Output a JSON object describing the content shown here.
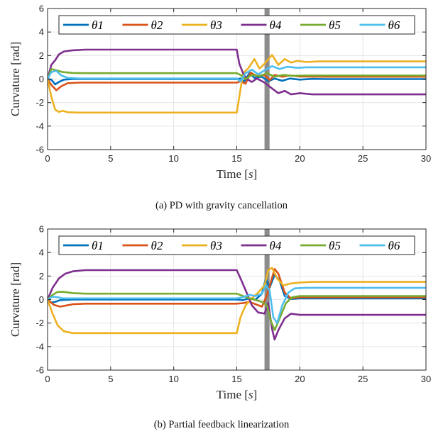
{
  "colors": {
    "theta1": "#0072BD",
    "theta2": "#D95319",
    "theta3": "#EDB120",
    "theta4": "#7E2F8E",
    "theta5": "#77AC30",
    "theta6": "#4DBEEE",
    "disturbance_band": "#8c8c8c",
    "grid": "#e6e6e6",
    "axes": "#262626"
  },
  "chart_data": [
    {
      "type": "line",
      "caption": "(a) PD with gravity cancellation",
      "xlabel": "Time",
      "xlabel_unit": "s",
      "ylabel": "Curvature [rad]",
      "xlim": [
        0,
        30
      ],
      "ylim": [
        -6,
        6
      ],
      "xticks": [
        0,
        5,
        10,
        15,
        20,
        25,
        30
      ],
      "yticks": [
        -6,
        -4,
        -2,
        0,
        2,
        4,
        6
      ],
      "grid": true,
      "legend_placement": "top, single row",
      "shaded_band_x": [
        17.2,
        17.6
      ],
      "series": [
        {
          "name": "θ1",
          "key": "theta1",
          "points": [
            [
              0,
              0
            ],
            [
              0.3,
              -0.05
            ],
            [
              0.6,
              -0.45
            ],
            [
              0.9,
              -0.25
            ],
            [
              1.3,
              -0.05
            ],
            [
              2,
              0
            ],
            [
              15,
              0
            ],
            [
              15.3,
              0.05
            ],
            [
              15.6,
              -0.2
            ],
            [
              16,
              0.5
            ],
            [
              16.4,
              0.1
            ],
            [
              17,
              0.2
            ],
            [
              17.5,
              -0.2
            ],
            [
              18,
              0.05
            ],
            [
              18.6,
              -0.15
            ],
            [
              19.2,
              0.05
            ],
            [
              20,
              -0.05
            ],
            [
              21,
              0.02
            ],
            [
              22,
              0
            ],
            [
              30,
              0
            ]
          ]
        },
        {
          "name": "θ2",
          "key": "theta2",
          "points": [
            [
              0,
              0
            ],
            [
              0.3,
              -0.5
            ],
            [
              0.7,
              -0.95
            ],
            [
              1.1,
              -0.6
            ],
            [
              1.6,
              -0.35
            ],
            [
              2.5,
              -0.3
            ],
            [
              15,
              -0.3
            ],
            [
              15.3,
              -0.2
            ],
            [
              15.7,
              -0.4
            ],
            [
              16.1,
              0.55
            ],
            [
              16.6,
              0.25
            ],
            [
              17.2,
              0.35
            ],
            [
              17.6,
              -0.1
            ],
            [
              18,
              0.35
            ],
            [
              18.6,
              0.2
            ],
            [
              19.2,
              0.3
            ],
            [
              20,
              0.22
            ],
            [
              22,
              0.2
            ],
            [
              30,
              0.2
            ]
          ]
        },
        {
          "name": "θ3",
          "key": "theta3",
          "points": [
            [
              0,
              0
            ],
            [
              0.3,
              -1.5
            ],
            [
              0.6,
              -2.6
            ],
            [
              0.9,
              -2.8
            ],
            [
              1.2,
              -2.7
            ],
            [
              1.6,
              -2.82
            ],
            [
              2.5,
              -2.85
            ],
            [
              15,
              -2.85
            ],
            [
              15.2,
              -1.5
            ],
            [
              15.5,
              0.5
            ],
            [
              15.9,
              0.9
            ],
            [
              16.4,
              1.7
            ],
            [
              16.8,
              0.9
            ],
            [
              17.2,
              1.3
            ],
            [
              17.8,
              2.05
            ],
            [
              18.3,
              1.2
            ],
            [
              18.8,
              1.7
            ],
            [
              19.3,
              1.4
            ],
            [
              19.8,
              1.55
            ],
            [
              20.5,
              1.45
            ],
            [
              21.5,
              1.5
            ],
            [
              30,
              1.5
            ]
          ]
        },
        {
          "name": "θ4",
          "key": "theta4",
          "points": [
            [
              0,
              0
            ],
            [
              0.3,
              1.2
            ],
            [
              0.6,
              1.6
            ],
            [
              0.9,
              2.1
            ],
            [
              1.3,
              2.35
            ],
            [
              2,
              2.45
            ],
            [
              3,
              2.5
            ],
            [
              15,
              2.5
            ],
            [
              15.2,
              1.3
            ],
            [
              15.5,
              0.5
            ],
            [
              15.8,
              0.0
            ],
            [
              16.2,
              -0.25
            ],
            [
              16.6,
              0.05
            ],
            [
              17.2,
              -0.3
            ],
            [
              17.8,
              -0.8
            ],
            [
              18.3,
              -1.2
            ],
            [
              18.8,
              -1.0
            ],
            [
              19.3,
              -1.3
            ],
            [
              20,
              -1.2
            ],
            [
              21,
              -1.3
            ],
            [
              30,
              -1.3
            ]
          ]
        },
        {
          "name": "θ5",
          "key": "theta5",
          "points": [
            [
              0,
              0
            ],
            [
              0.3,
              0.85
            ],
            [
              0.7,
              0.75
            ],
            [
              1.2,
              0.6
            ],
            [
              2,
              0.52
            ],
            [
              3,
              0.5
            ],
            [
              15,
              0.5
            ],
            [
              15.3,
              0.35
            ],
            [
              15.7,
              0.0
            ],
            [
              16.2,
              0.35
            ],
            [
              16.8,
              0.25
            ],
            [
              17.4,
              0.5
            ],
            [
              18,
              0.2
            ],
            [
              18.7,
              0.35
            ],
            [
              19.4,
              0.28
            ],
            [
              20.5,
              0.3
            ],
            [
              30,
              0.3
            ]
          ]
        },
        {
          "name": "θ6",
          "key": "theta6",
          "points": [
            [
              0,
              0
            ],
            [
              0.3,
              0.6
            ],
            [
              0.7,
              0.7
            ],
            [
              1.1,
              0.3
            ],
            [
              1.6,
              0.1
            ],
            [
              2.5,
              0.05
            ],
            [
              15,
              0.05
            ],
            [
              15.3,
              -0.2
            ],
            [
              15.7,
              0.5
            ],
            [
              16.2,
              0.8
            ],
            [
              16.7,
              0.4
            ],
            [
              17.2,
              0.75
            ],
            [
              17.8,
              1.1
            ],
            [
              18.4,
              0.85
            ],
            [
              19,
              1.05
            ],
            [
              19.8,
              0.95
            ],
            [
              20.5,
              1.0
            ],
            [
              30,
              1.0
            ]
          ]
        }
      ]
    },
    {
      "type": "line",
      "caption": "(b) Partial feedback linearization",
      "xlabel": "Time",
      "xlabel_unit": "s",
      "ylabel": "Curvature [rad]",
      "xlim": [
        0,
        30
      ],
      "ylim": [
        -6,
        6
      ],
      "xticks": [
        0,
        5,
        10,
        15,
        20,
        25,
        30
      ],
      "yticks": [
        -6,
        -4,
        -2,
        0,
        2,
        4,
        6
      ],
      "grid": true,
      "legend_placement": "top, single row",
      "shaded_band_x": [
        17.2,
        17.6
      ],
      "series": [
        {
          "name": "θ1",
          "key": "theta1",
          "points": [
            [
              0,
              0
            ],
            [
              0.3,
              -0.25
            ],
            [
              0.6,
              -0.2
            ],
            [
              1,
              -0.05
            ],
            [
              2,
              0
            ],
            [
              15,
              0
            ],
            [
              15.5,
              -0.05
            ],
            [
              16,
              0.1
            ],
            [
              16.5,
              0
            ],
            [
              17,
              0.5
            ],
            [
              17.3,
              1.8
            ],
            [
              17.6,
              1.0
            ],
            [
              18,
              2.1
            ],
            [
              18.4,
              1.6
            ],
            [
              18.8,
              0.3
            ],
            [
              19.3,
              0.05
            ],
            [
              20,
              0.1
            ],
            [
              30,
              0.1
            ]
          ]
        },
        {
          "name": "θ2",
          "key": "theta2",
          "points": [
            [
              0,
              0
            ],
            [
              0.5,
              -0.45
            ],
            [
              1,
              -0.6
            ],
            [
              1.5,
              -0.5
            ],
            [
              2,
              -0.4
            ],
            [
              3,
              -0.35
            ],
            [
              15,
              -0.35
            ],
            [
              15.5,
              -0.3
            ],
            [
              16,
              -0.2
            ],
            [
              16.5,
              -0.4
            ],
            [
              17,
              -0.6
            ],
            [
              17.4,
              0.4
            ],
            [
              17.7,
              1.5
            ],
            [
              18,
              2.6
            ],
            [
              18.3,
              2.2
            ],
            [
              18.8,
              0.6
            ],
            [
              19.3,
              0.1
            ],
            [
              20,
              0.2
            ],
            [
              30,
              0.2
            ]
          ]
        },
        {
          "name": "θ3",
          "key": "theta3",
          "points": [
            [
              0,
              0
            ],
            [
              0.4,
              -1.2
            ],
            [
              0.8,
              -2.2
            ],
            [
              1.3,
              -2.7
            ],
            [
              2,
              -2.85
            ],
            [
              3,
              -2.85
            ],
            [
              15,
              -2.85
            ],
            [
              15.3,
              -1.5
            ],
            [
              15.7,
              -0.5
            ],
            [
              16.2,
              0.1
            ],
            [
              16.7,
              0.6
            ],
            [
              17.2,
              1.2
            ],
            [
              17.5,
              2.5
            ],
            [
              17.8,
              2.7
            ],
            [
              18.2,
              1.8
            ],
            [
              18.7,
              1.2
            ],
            [
              19.2,
              1.35
            ],
            [
              20,
              1.45
            ],
            [
              21,
              1.5
            ],
            [
              30,
              1.5
            ]
          ]
        },
        {
          "name": "θ4",
          "key": "theta4",
          "points": [
            [
              0,
              0
            ],
            [
              0.4,
              1.0
            ],
            [
              0.9,
              1.8
            ],
            [
              1.4,
              2.2
            ],
            [
              2,
              2.4
            ],
            [
              3,
              2.5
            ],
            [
              15,
              2.5
            ],
            [
              15.3,
              1.8
            ],
            [
              15.7,
              0.8
            ],
            [
              16.2,
              -0.5
            ],
            [
              16.7,
              -1.1
            ],
            [
              17.2,
              -1.2
            ],
            [
              17.5,
              -0.3
            ],
            [
              17.8,
              -2.5
            ],
            [
              18,
              -3.4
            ],
            [
              18.3,
              -2.6
            ],
            [
              18.8,
              -1.6
            ],
            [
              19.3,
              -1.2
            ],
            [
              20,
              -1.3
            ],
            [
              21,
              -1.3
            ],
            [
              30,
              -1.3
            ]
          ]
        },
        {
          "name": "θ5",
          "key": "theta5",
          "points": [
            [
              0,
              0
            ],
            [
              0.4,
              0.4
            ],
            [
              0.8,
              0.65
            ],
            [
              1.3,
              0.65
            ],
            [
              2,
              0.55
            ],
            [
              3,
              0.5
            ],
            [
              15,
              0.5
            ],
            [
              15.5,
              0.3
            ],
            [
              16,
              0.1
            ],
            [
              16.5,
              -0.05
            ],
            [
              17,
              -0.2
            ],
            [
              17.4,
              -0.5
            ],
            [
              17.7,
              -1.8
            ],
            [
              18,
              -2.6
            ],
            [
              18.4,
              -1.6
            ],
            [
              18.9,
              -0.3
            ],
            [
              19.4,
              0.2
            ],
            [
              20,
              0.3
            ],
            [
              30,
              0.3
            ]
          ]
        },
        {
          "name": "θ6",
          "key": "theta6",
          "points": [
            [
              0,
              0
            ],
            [
              0.4,
              0.25
            ],
            [
              0.8,
              0.2
            ],
            [
              1.2,
              0.1
            ],
            [
              2,
              0.1
            ],
            [
              15,
              0.1
            ],
            [
              15.5,
              0.2
            ],
            [
              16,
              0.4
            ],
            [
              16.5,
              0.3
            ],
            [
              17,
              0.5
            ],
            [
              17.3,
              1.2
            ],
            [
              17.6,
              0.8
            ],
            [
              17.9,
              -1.5
            ],
            [
              18.2,
              -2.0
            ],
            [
              18.6,
              -0.5
            ],
            [
              19.1,
              0.6
            ],
            [
              19.6,
              0.95
            ],
            [
              20.5,
              1.0
            ],
            [
              30,
              1.0
            ]
          ]
        }
      ]
    }
  ]
}
